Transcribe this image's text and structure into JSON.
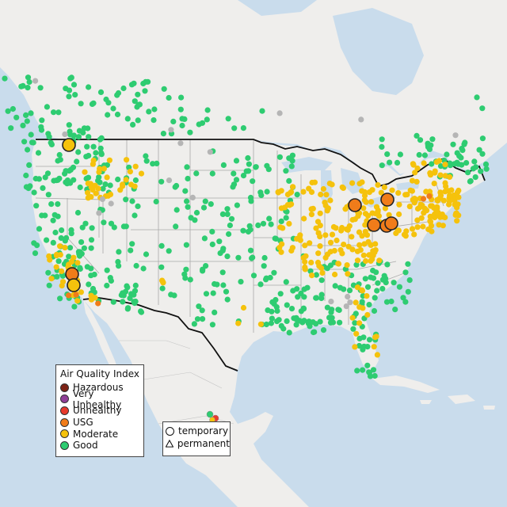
{
  "legend_aqi": {
    "title": "Air Quality Index",
    "items": [
      {
        "label": "Hazardous",
        "color": "#7e2316"
      },
      {
        "label": "Very Unhealthy",
        "color": "#8f3f97"
      },
      {
        "label": "Unhealthy",
        "color": "#e83a2c"
      },
      {
        "label": "USG",
        "color": "#f07c1a"
      },
      {
        "label": "Moderate",
        "color": "#f5c20c"
      },
      {
        "label": "Good",
        "color": "#2ecc71"
      }
    ]
  },
  "legend_type": {
    "items": [
      {
        "label": "temporary",
        "shape": "circle"
      },
      {
        "label": "permanent",
        "shape": "triangle"
      }
    ]
  },
  "colors": {
    "water": "#c9dcec",
    "land": "#efeeec",
    "state_border": "#a9a9a9",
    "country_border": "#111111",
    "nodata_marker": "#b5b5b5"
  },
  "markers_large": [
    {
      "label": "USG",
      "color": "#f07c1a",
      "region": "southern-california"
    },
    {
      "label": "Moderate",
      "color": "#f5c20c",
      "region": "southern-california"
    },
    {
      "label": "Moderate",
      "color": "#f5c20c",
      "region": "northern-rockies"
    },
    {
      "label": "USG",
      "color": "#f07c1a",
      "region": "michigan"
    },
    {
      "label": "USG",
      "color": "#f07c1a",
      "region": "ohio-valley"
    }
  ]
}
